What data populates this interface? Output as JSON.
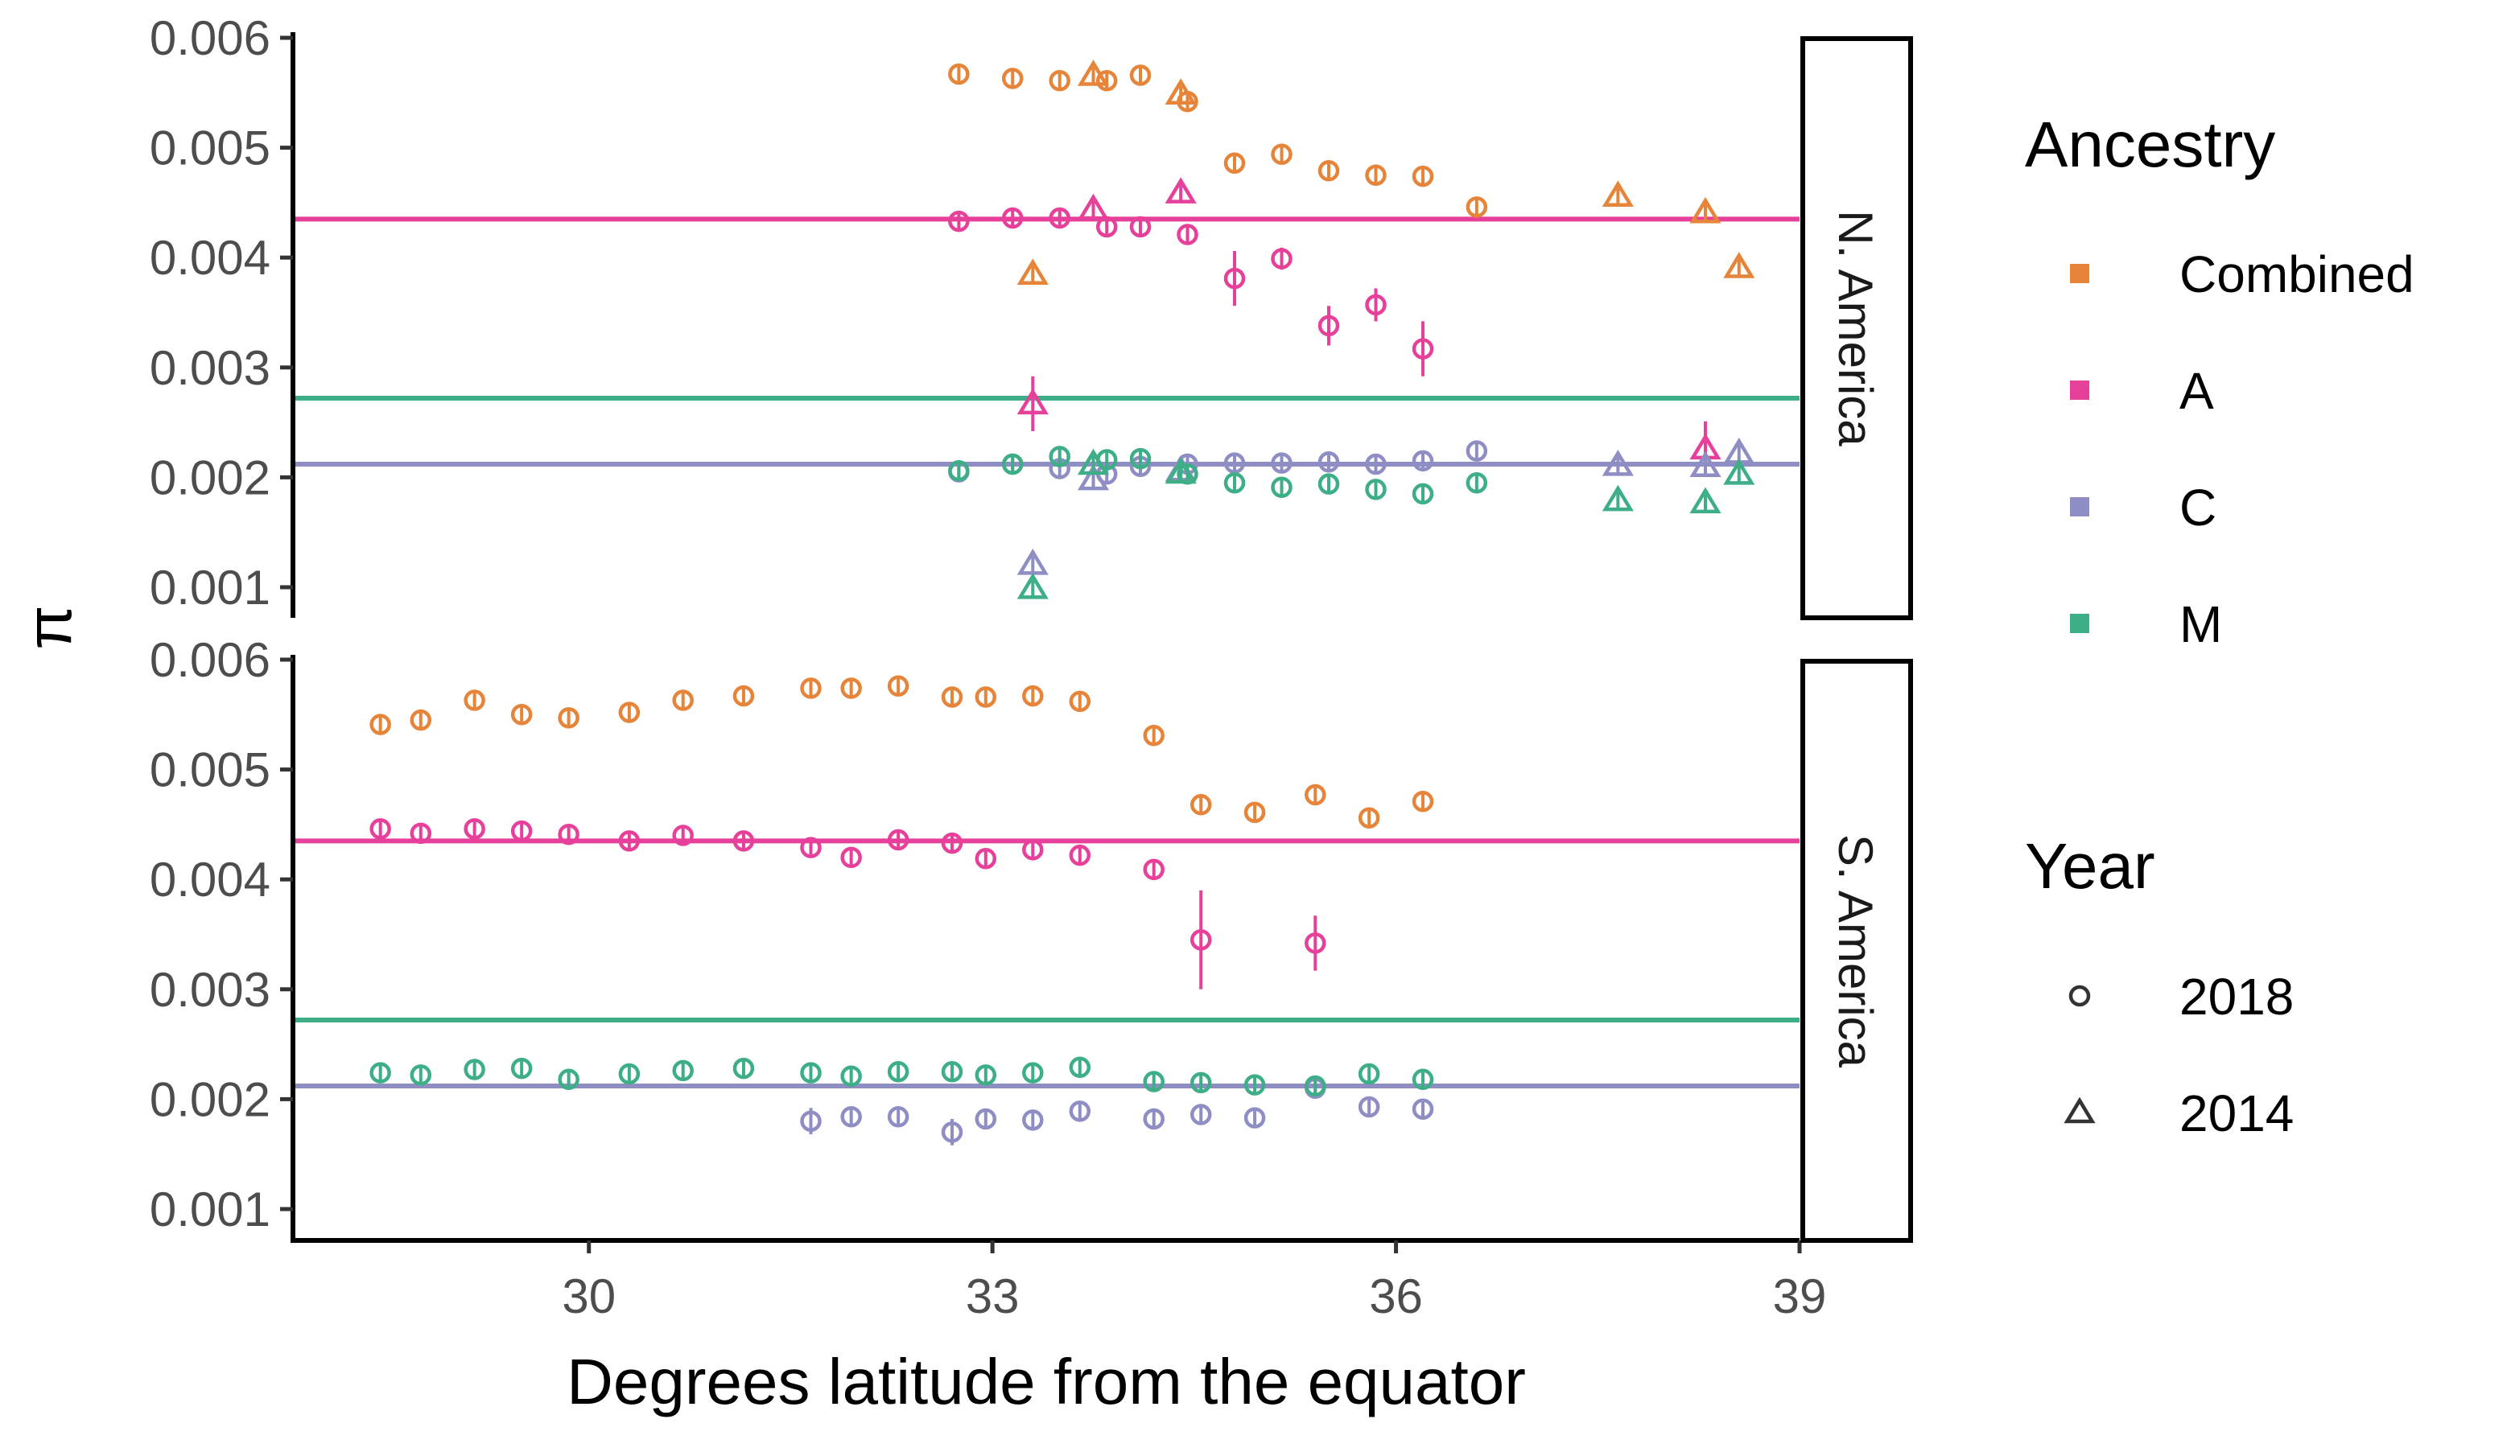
{
  "chart_data": {
    "type": "scatter",
    "xlabel": "Degrees latitude from the equator",
    "ylabel": "π",
    "xlim": [
      27.8,
      39.0
    ],
    "ylim": [
      0.00075,
      0.006
    ],
    "x_ticks": [
      30,
      33,
      36,
      39
    ],
    "x_tick_labels": [
      "30",
      "33",
      "36",
      "39"
    ],
    "y_ticks": [
      0.001,
      0.002,
      0.003,
      0.004,
      0.005,
      0.006
    ],
    "y_tick_labels": [
      "0.001",
      "0.002",
      "0.003",
      "0.004",
      "0.005",
      "0.006"
    ],
    "grid": false,
    "facets": [
      "N. America",
      "S. America"
    ],
    "legend_position": "right",
    "legend": {
      "ancestry_title": "Ancestry",
      "ancestry": [
        {
          "key": "Combined",
          "label": "Combined",
          "color": "#E6843A"
        },
        {
          "key": "A",
          "label": "A",
          "color": "#E7409A"
        },
        {
          "key": "C",
          "label": "C",
          "color": "#8F8EC4"
        },
        {
          "key": "M",
          "label": "M",
          "color": "#3DAE86"
        }
      ],
      "year_title": "Year",
      "year": [
        {
          "key": "2018",
          "label": "2018",
          "shape": "circle"
        },
        {
          "key": "2014",
          "label": "2014",
          "shape": "triangle"
        }
      ]
    },
    "reference_lines": [
      {
        "ancestry": "A",
        "y": 0.00435
      },
      {
        "ancestry": "M",
        "y": 0.00272
      },
      {
        "ancestry": "C",
        "y": 0.00212
      }
    ],
    "series": [
      {
        "facet": "N. America",
        "ancestry": "Combined",
        "year": "2018",
        "x": [
          32.75,
          33.15,
          33.5,
          33.85,
          34.1,
          34.45,
          34.8,
          35.15,
          35.5,
          35.85,
          36.2,
          36.6
        ],
        "y": [
          0.00567,
          0.00563,
          0.00561,
          0.00561,
          0.00566,
          0.00542,
          0.00486,
          0.00494,
          0.00479,
          0.00475,
          0.00474,
          0.00446
        ],
        "err": [
          0,
          0,
          0,
          0,
          0,
          0,
          0,
          0,
          0,
          0,
          0,
          0
        ]
      },
      {
        "facet": "N. America",
        "ancestry": "Combined",
        "year": "2014",
        "x": [
          33.3,
          33.75,
          34.4,
          37.65,
          38.3,
          38.55
        ],
        "y": [
          0.00385,
          0.00566,
          0.00549,
          0.00456,
          0.00441,
          0.00391
        ],
        "err": [
          0,
          0,
          0,
          0,
          0,
          0
        ]
      },
      {
        "facet": "N. America",
        "ancestry": "A",
        "year": "2018",
        "x": [
          32.75,
          33.15,
          33.5,
          33.85,
          34.1,
          34.45,
          34.8,
          35.15,
          35.5,
          35.85,
          36.2
        ],
        "y": [
          0.00433,
          0.00436,
          0.00436,
          0.00428,
          0.00428,
          0.00421,
          0.00381,
          0.00399,
          0.00338,
          0.00357,
          0.00317
        ],
        "err": [
          0,
          0,
          0,
          0,
          0,
          0,
          0.00025,
          0.0001,
          0.00018,
          0.00015,
          0.00025
        ]
      },
      {
        "facet": "N. America",
        "ancestry": "A",
        "year": "2014",
        "x": [
          33.3,
          33.75,
          34.4,
          38.3
        ],
        "y": [
          0.00267,
          0.00444,
          0.00459,
          0.00226
        ],
        "err": [
          0.00025,
          0,
          0,
          0.00025
        ]
      },
      {
        "facet": "N. America",
        "ancestry": "C",
        "year": "2018",
        "x": [
          32.75,
          33.15,
          33.5,
          33.85,
          34.1,
          34.45,
          34.8,
          35.15,
          35.5,
          35.85,
          36.2,
          36.6
        ],
        "y": [
          0.00205,
          0.00212,
          0.00208,
          0.00203,
          0.0021,
          0.00212,
          0.00213,
          0.00213,
          0.00214,
          0.00212,
          0.00215,
          0.00224
        ],
        "err": [
          0,
          0,
          0,
          0,
          0,
          0,
          0,
          0,
          0,
          0,
          0,
          0
        ]
      },
      {
        "facet": "N. America",
        "ancestry": "C",
        "year": "2014",
        "x": [
          33.3,
          33.75,
          34.4,
          37.65,
          38.3,
          38.55
        ],
        "y": [
          0.00121,
          0.00198,
          0.00206,
          0.00211,
          0.0021,
          0.00222
        ],
        "err": [
          0,
          0,
          0,
          0,
          0,
          0
        ]
      },
      {
        "facet": "N. America",
        "ancestry": "M",
        "year": "2018",
        "x": [
          32.75,
          33.15,
          33.5,
          33.85,
          34.1,
          34.45,
          34.8,
          35.15,
          35.5,
          35.85,
          36.2,
          36.6
        ],
        "y": [
          0.00206,
          0.00212,
          0.00219,
          0.00216,
          0.00217,
          0.00203,
          0.00195,
          0.00191,
          0.00194,
          0.00189,
          0.00185,
          0.00195
        ],
        "err": [
          0,
          0,
          0,
          0,
          0,
          0,
          0,
          0,
          0,
          0,
          0,
          0
        ]
      },
      {
        "facet": "N. America",
        "ancestry": "M",
        "year": "2014",
        "x": [
          33.3,
          33.75,
          34.4,
          37.65,
          38.3,
          38.55
        ],
        "y": [
          0.00099,
          0.00212,
          0.00204,
          0.00179,
          0.00177,
          0.00203
        ],
        "err": [
          0,
          0,
          0,
          0,
          0,
          0
        ]
      },
      {
        "facet": "S. America",
        "ancestry": "Combined",
        "year": "2018",
        "x": [
          28.45,
          28.75,
          29.15,
          29.5,
          29.85,
          30.3,
          30.7,
          31.15,
          31.65,
          31.95,
          32.3,
          32.7,
          32.95,
          33.3,
          33.65,
          34.2,
          34.55,
          34.95,
          35.4,
          35.8,
          36.2
        ],
        "y": [
          0.00541,
          0.00545,
          0.00563,
          0.0055,
          0.00547,
          0.00552,
          0.00563,
          0.00567,
          0.00574,
          0.00574,
          0.00576,
          0.00566,
          0.00566,
          0.00567,
          0.00562,
          0.00531,
          0.00468,
          0.00461,
          0.00477,
          0.00456,
          0.00471
        ],
        "err": [
          0,
          0,
          0,
          0,
          0,
          0,
          0,
          0,
          0,
          0,
          0,
          0,
          0,
          0,
          0,
          0,
          0,
          0,
          0,
          0,
          0
        ]
      },
      {
        "facet": "S. America",
        "ancestry": "A",
        "year": "2018",
        "x": [
          28.45,
          28.75,
          29.15,
          29.5,
          29.85,
          30.3,
          30.7,
          31.15,
          31.65,
          31.95,
          32.3,
          32.7,
          32.95,
          33.3,
          33.65,
          34.2,
          34.55,
          35.4
        ],
        "y": [
          0.00446,
          0.00442,
          0.00446,
          0.00444,
          0.00441,
          0.00435,
          0.0044,
          0.00435,
          0.00429,
          0.0042,
          0.00436,
          0.00433,
          0.00419,
          0.00427,
          0.00422,
          0.00409,
          0.00345,
          0.00342
        ],
        "err": [
          0,
          0,
          0,
          0,
          0,
          0,
          0,
          0,
          0,
          0,
          0,
          0,
          0,
          0,
          0,
          0,
          0.00045,
          0.00025
        ]
      },
      {
        "facet": "S. America",
        "ancestry": "C",
        "year": "2018",
        "x": [
          31.65,
          31.95,
          32.3,
          32.7,
          32.95,
          33.3,
          33.65,
          34.2,
          34.55,
          34.95,
          35.4,
          35.8,
          36.2
        ],
        "y": [
          0.0018,
          0.00184,
          0.00184,
          0.0017,
          0.00182,
          0.00181,
          0.00189,
          0.00182,
          0.00186,
          0.00183,
          0.0021,
          0.00193,
          0.00191
        ],
        "err": [
          0.00012,
          0,
          0,
          0.00012,
          0,
          0,
          0,
          0,
          0,
          0,
          0,
          0,
          0
        ]
      },
      {
        "facet": "S. America",
        "ancestry": "M",
        "year": "2018",
        "x": [
          28.45,
          28.75,
          29.15,
          29.5,
          29.85,
          30.3,
          30.7,
          31.15,
          31.65,
          31.95,
          32.3,
          32.7,
          32.95,
          33.3,
          33.65,
          34.2,
          34.55,
          34.95,
          35.4,
          35.8,
          36.2
        ],
        "y": [
          0.00224,
          0.00222,
          0.00227,
          0.00228,
          0.00218,
          0.00223,
          0.00226,
          0.00228,
          0.00224,
          0.00221,
          0.00225,
          0.00225,
          0.00222,
          0.00224,
          0.00229,
          0.00216,
          0.00215,
          0.00213,
          0.00212,
          0.00223,
          0.00218
        ],
        "err": [
          0,
          0,
          0,
          0,
          0,
          0,
          0,
          0,
          0,
          0,
          0,
          0,
          0,
          0,
          0,
          0,
          0,
          0,
          0,
          0,
          0
        ]
      }
    ]
  }
}
